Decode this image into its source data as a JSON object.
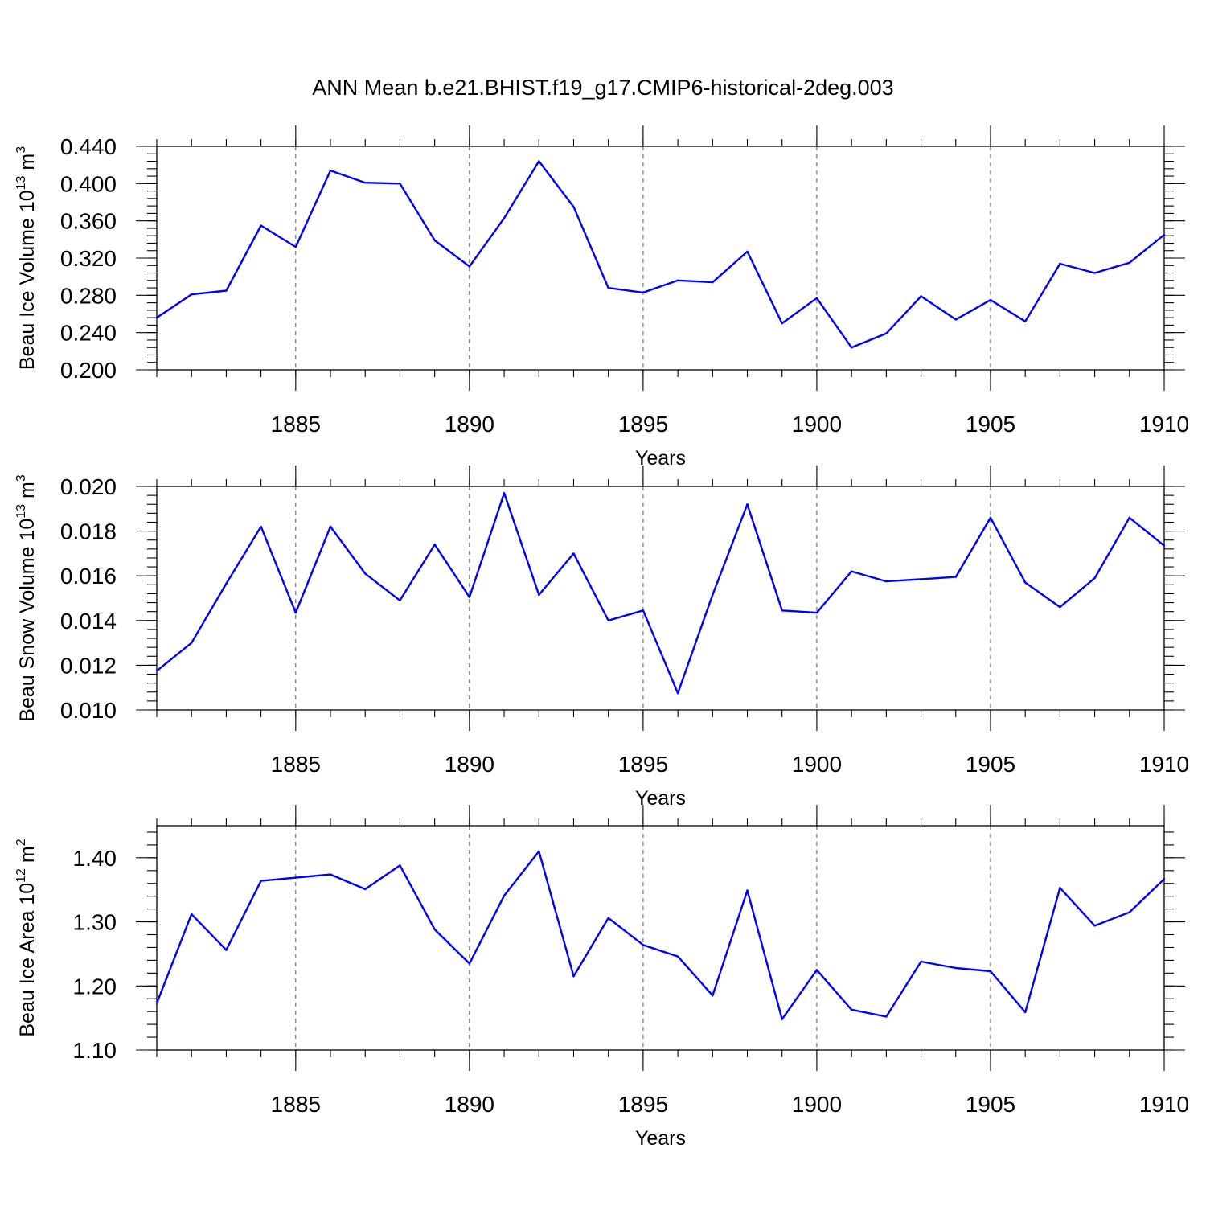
{
  "chart_data": {
    "type": "line",
    "title": "ANN Mean b.e21.BHIST.f19_g17.CMIP6-historical-2deg.003",
    "series_color": "#0000ff",
    "x": [
      1881,
      1882,
      1883,
      1884,
      1885,
      1886,
      1887,
      1888,
      1889,
      1890,
      1891,
      1892,
      1893,
      1894,
      1895,
      1896,
      1897,
      1898,
      1899,
      1900,
      1901,
      1902,
      1903,
      1904,
      1905,
      1906,
      1907,
      1908,
      1909,
      1910
    ],
    "xlim": [
      1881,
      1910
    ],
    "xticks": [
      "1885",
      "1890",
      "1895",
      "1900",
      "1905",
      "1910"
    ],
    "xtick_values": [
      1885,
      1890,
      1895,
      1900,
      1905,
      1910
    ],
    "panels": [
      {
        "name": "ice-volume",
        "xlabel": "Years",
        "ylabel_base": "Beau Ice Volume 10",
        "ylabel_exp1": "13",
        "ylabel_unit": " m",
        "ylabel_exp2": "3",
        "ylim": [
          0.2,
          0.44
        ],
        "yticks": [
          "0.200",
          "0.240",
          "0.280",
          "0.320",
          "0.360",
          "0.400",
          "0.440"
        ],
        "ytick_values": [
          0.2,
          0.24,
          0.28,
          0.32,
          0.36,
          0.4,
          0.44
        ],
        "values": [
          0.256,
          0.281,
          0.285,
          0.355,
          0.332,
          0.414,
          0.401,
          0.4,
          0.339,
          0.311,
          0.363,
          0.424,
          0.375,
          0.288,
          0.283,
          0.296,
          0.294,
          0.327,
          0.25,
          0.277,
          0.224,
          0.239,
          0.279,
          0.254,
          0.275,
          0.252,
          0.314,
          0.304,
          0.315,
          0.345
        ]
      },
      {
        "name": "snow-volume",
        "xlabel": "Years",
        "ylabel_base": "Beau Snow Volume 10",
        "ylabel_exp1": "13",
        "ylabel_unit": " m",
        "ylabel_exp2": "3",
        "ylim": [
          0.01,
          0.02
        ],
        "yticks": [
          "0.010",
          "0.012",
          "0.014",
          "0.016",
          "0.018",
          "0.020"
        ],
        "ytick_values": [
          0.01,
          0.012,
          0.014,
          0.016,
          0.018,
          0.02
        ],
        "values": [
          0.01175,
          0.013,
          0.01565,
          0.0182,
          0.01435,
          0.0182,
          0.0161,
          0.0149,
          0.0174,
          0.01505,
          0.0197,
          0.01515,
          0.017,
          0.014,
          0.01445,
          0.01075,
          0.01515,
          0.0192,
          0.01445,
          0.01435,
          0.0162,
          0.01575,
          0.01585,
          0.01595,
          0.0186,
          0.0157,
          0.0146,
          0.0159,
          0.0186,
          0.01735
        ]
      },
      {
        "name": "ice-area",
        "xlabel": "Years",
        "ylabel_base": "Beau Ice Area 10",
        "ylabel_exp1": "12",
        "ylabel_unit": " m",
        "ylabel_exp2": "2",
        "ylim": [
          1.1,
          1.45
        ],
        "yticks": [
          "1.10",
          "1.20",
          "1.30",
          "1.40"
        ],
        "ytick_values": [
          1.1,
          1.2,
          1.3,
          1.4
        ],
        "values": [
          1.173,
          1.312,
          1.256,
          1.364,
          1.369,
          1.374,
          1.351,
          1.388,
          1.288,
          1.235,
          1.341,
          1.41,
          1.215,
          1.306,
          1.264,
          1.246,
          1.185,
          1.349,
          1.148,
          1.225,
          1.163,
          1.152,
          1.238,
          1.228,
          1.223,
          1.159,
          1.353,
          1.294,
          1.315,
          1.367
        ]
      }
    ]
  }
}
